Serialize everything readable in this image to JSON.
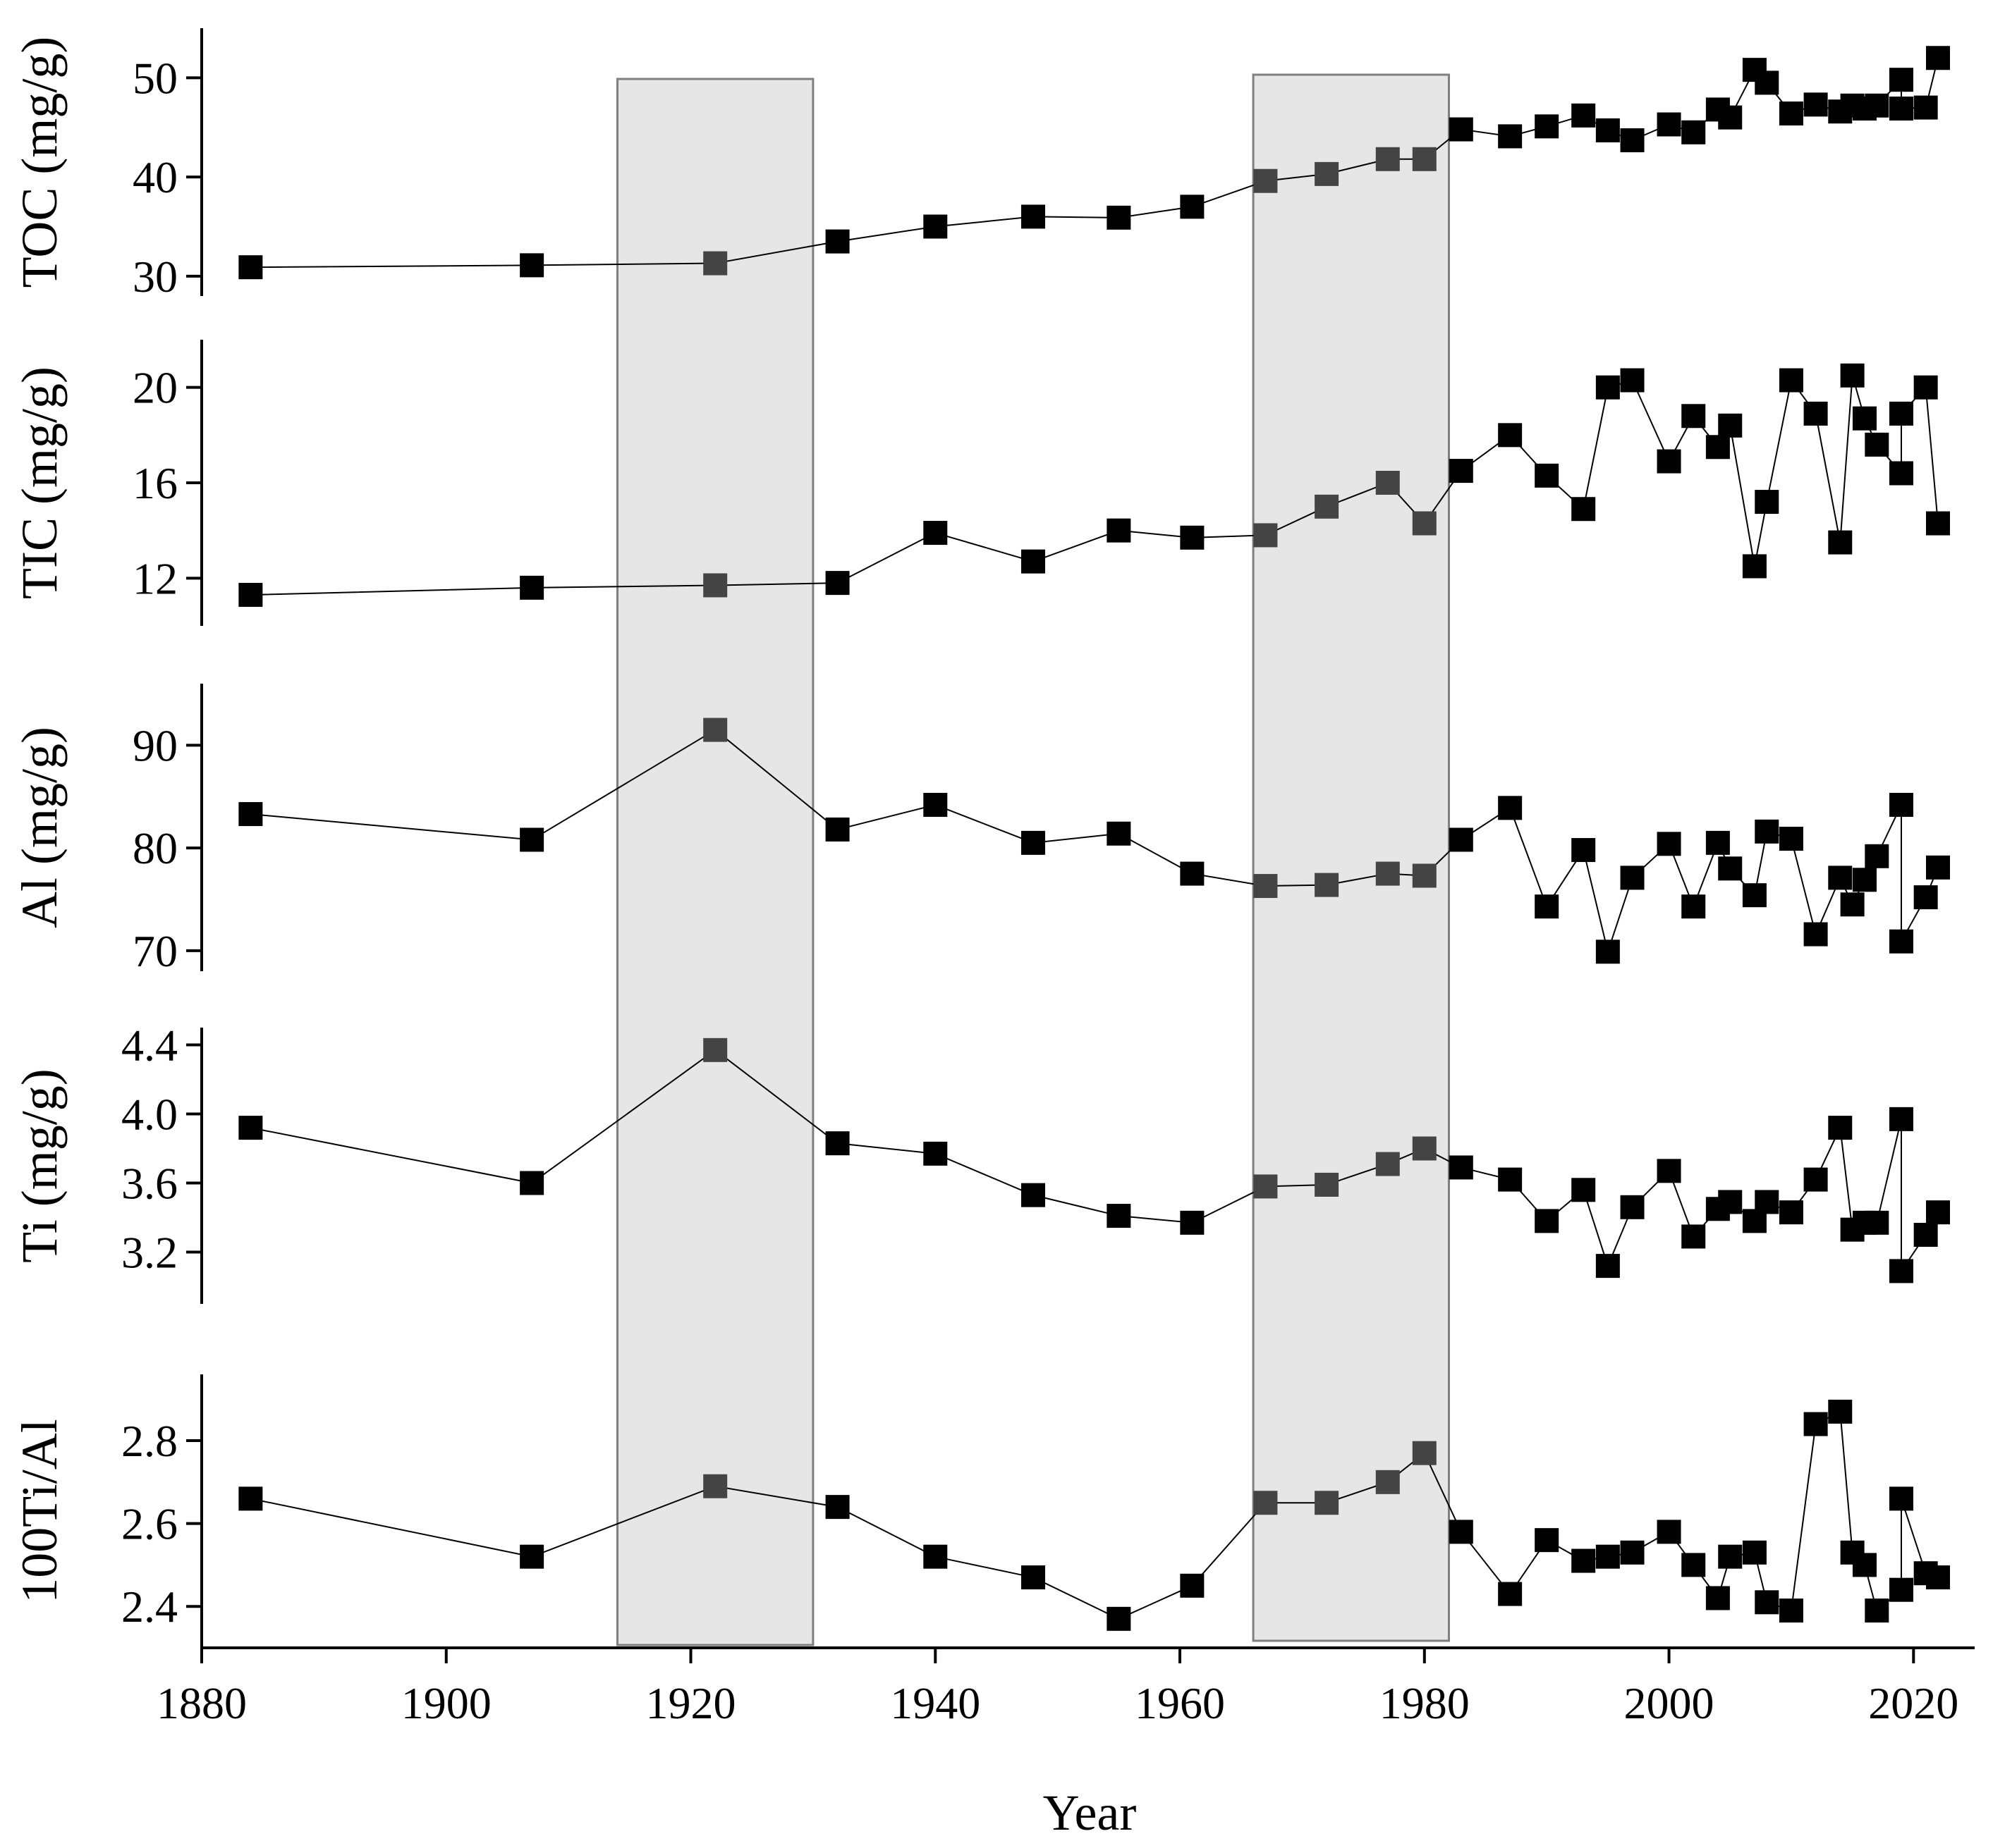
{
  "chart_data": {
    "type": "line",
    "xlabel": "Year",
    "xlim": [
      1880,
      2025
    ],
    "xticks": [
      1880,
      1900,
      1920,
      1940,
      1960,
      1980,
      2000,
      2020
    ],
    "shaded_ranges": [
      [
        1914,
        1930
      ],
      [
        1966,
        1982
      ]
    ],
    "marker": "square",
    "marker_color": "#000000",
    "shaded_marker_color": "#444444",
    "shade_color": "#e6e6e6",
    "panels": [
      {
        "ylabel": "TOC (mg/g)",
        "ylim": [
          28,
          55
        ],
        "yticks": [
          30,
          40,
          50
        ],
        "points": [
          [
            1884,
            30.9
          ],
          [
            1907,
            31.1
          ],
          [
            1922,
            31.3
          ],
          [
            1932,
            33.5
          ],
          [
            1940,
            35.0
          ],
          [
            1948,
            36.0
          ],
          [
            1955,
            35.9
          ],
          [
            1961,
            37.0
          ],
          [
            1967,
            39.6
          ],
          [
            1972,
            40.3
          ],
          [
            1977,
            41.8
          ],
          [
            1980,
            41.8
          ],
          [
            1983,
            44.8
          ],
          [
            1987,
            44.1
          ],
          [
            1990,
            45.1
          ],
          [
            1993,
            46.2
          ],
          [
            1995,
            44.7
          ],
          [
            1997,
            43.7
          ],
          [
            2000,
            45.3
          ],
          [
            2002,
            44.5
          ],
          [
            2004,
            46.8
          ],
          [
            2005,
            46.0
          ],
          [
            2007,
            50.8
          ],
          [
            2008,
            49.5
          ],
          [
            2010,
            46.4
          ],
          [
            2012,
            47.3
          ],
          [
            2014,
            46.6
          ],
          [
            2015,
            47.2
          ],
          [
            2016,
            46.9
          ],
          [
            2017,
            47.2
          ],
          [
            2019,
            49.8
          ],
          [
            2019,
            46.9
          ],
          [
            2021,
            47.0
          ],
          [
            2022,
            52.0
          ]
        ]
      },
      {
        "ylabel": "TIC (mg/g)",
        "ylim": [
          10,
          22
        ],
        "yticks": [
          12,
          16,
          20
        ],
        "points": [
          [
            1884,
            11.3
          ],
          [
            1907,
            11.6
          ],
          [
            1922,
            11.7
          ],
          [
            1932,
            11.8
          ],
          [
            1940,
            13.9
          ],
          [
            1948,
            12.7
          ],
          [
            1955,
            14.0
          ],
          [
            1961,
            13.7
          ],
          [
            1967,
            13.8
          ],
          [
            1972,
            15.0
          ],
          [
            1977,
            16.0
          ],
          [
            1980,
            14.3
          ],
          [
            1983,
            16.5
          ],
          [
            1987,
            18.0
          ],
          [
            1990,
            16.3
          ],
          [
            1993,
            14.9
          ],
          [
            1995,
            20.0
          ],
          [
            1997,
            20.3
          ],
          [
            2000,
            16.9
          ],
          [
            2002,
            18.8
          ],
          [
            2004,
            17.5
          ],
          [
            2005,
            18.4
          ],
          [
            2007,
            12.5
          ],
          [
            2008,
            15.2
          ],
          [
            2010,
            20.3
          ],
          [
            2012,
            18.9
          ],
          [
            2014,
            13.5
          ],
          [
            2015,
            20.5
          ],
          [
            2016,
            18.7
          ],
          [
            2017,
            17.6
          ],
          [
            2019,
            16.4
          ],
          [
            2019,
            18.9
          ],
          [
            2021,
            20.0
          ],
          [
            2022,
            14.3
          ]
        ]
      },
      {
        "ylabel": "Al (mg/g)",
        "ylim": [
          68,
          96
        ],
        "yticks": [
          70,
          80,
          90
        ],
        "points": [
          [
            1884,
            83.3
          ],
          [
            1907,
            80.8
          ],
          [
            1922,
            91.5
          ],
          [
            1932,
            81.8
          ],
          [
            1940,
            84.2
          ],
          [
            1948,
            80.5
          ],
          [
            1955,
            81.4
          ],
          [
            1961,
            77.5
          ],
          [
            1967,
            76.3
          ],
          [
            1972,
            76.4
          ],
          [
            1977,
            77.5
          ],
          [
            1980,
            77.3
          ],
          [
            1983,
            80.8
          ],
          [
            1987,
            83.9
          ],
          [
            1990,
            74.3
          ],
          [
            1993,
            79.8
          ],
          [
            1995,
            69.9
          ],
          [
            1997,
            77.1
          ],
          [
            2000,
            80.4
          ],
          [
            2002,
            74.3
          ],
          [
            2004,
            80.5
          ],
          [
            2005,
            78.0
          ],
          [
            2007,
            75.4
          ],
          [
            2008,
            81.6
          ],
          [
            2010,
            80.9
          ],
          [
            2012,
            71.6
          ],
          [
            2014,
            77.1
          ],
          [
            2015,
            74.5
          ],
          [
            2016,
            76.9
          ],
          [
            2017,
            79.2
          ],
          [
            2019,
            84.2
          ],
          [
            2019,
            70.9
          ],
          [
            2021,
            75.2
          ],
          [
            2022,
            78.1
          ]
        ]
      },
      {
        "ylabel": "Ti (mg/g)",
        "ylim": [
          2.9,
          4.5
        ],
        "yticks": [
          3.2,
          3.6,
          4.0,
          4.4
        ],
        "points": [
          [
            1884,
            3.92
          ],
          [
            1907,
            3.6
          ],
          [
            1922,
            4.37
          ],
          [
            1932,
            3.83
          ],
          [
            1940,
            3.77
          ],
          [
            1948,
            3.53
          ],
          [
            1955,
            3.41
          ],
          [
            1961,
            3.37
          ],
          [
            1967,
            3.58
          ],
          [
            1972,
            3.59
          ],
          [
            1977,
            3.71
          ],
          [
            1980,
            3.8
          ],
          [
            1983,
            3.69
          ],
          [
            1987,
            3.62
          ],
          [
            1990,
            3.38
          ],
          [
            1993,
            3.56
          ],
          [
            1995,
            3.12
          ],
          [
            1997,
            3.46
          ],
          [
            2000,
            3.67
          ],
          [
            2002,
            3.29
          ],
          [
            2004,
            3.45
          ],
          [
            2005,
            3.49
          ],
          [
            2007,
            3.38
          ],
          [
            2008,
            3.49
          ],
          [
            2010,
            3.43
          ],
          [
            2012,
            3.62
          ],
          [
            2014,
            3.92
          ],
          [
            2015,
            3.33
          ],
          [
            2016,
            3.37
          ],
          [
            2017,
            3.37
          ],
          [
            2019,
            3.97
          ],
          [
            2019,
            3.09
          ],
          [
            2021,
            3.3
          ],
          [
            2022,
            3.43
          ]
        ]
      },
      {
        "ylabel": "100Ti/Al",
        "ylim": [
          2.3,
          2.96
        ],
        "yticks": [
          2.4,
          2.6,
          2.8
        ],
        "points": [
          [
            1884,
            2.66
          ],
          [
            1907,
            2.52
          ],
          [
            1922,
            2.69
          ],
          [
            1932,
            2.64
          ],
          [
            1940,
            2.52
          ],
          [
            1948,
            2.47
          ],
          [
            1955,
            2.37
          ],
          [
            1961,
            2.45
          ],
          [
            1967,
            2.65
          ],
          [
            1972,
            2.65
          ],
          [
            1977,
            2.7
          ],
          [
            1980,
            2.77
          ],
          [
            1983,
            2.58
          ],
          [
            1987,
            2.43
          ],
          [
            1990,
            2.56
          ],
          [
            1993,
            2.51
          ],
          [
            1995,
            2.52
          ],
          [
            1997,
            2.53
          ],
          [
            2000,
            2.58
          ],
          [
            2002,
            2.5
          ],
          [
            2004,
            2.42
          ],
          [
            2005,
            2.52
          ],
          [
            2007,
            2.53
          ],
          [
            2008,
            2.41
          ],
          [
            2010,
            2.39
          ],
          [
            2012,
            2.84
          ],
          [
            2014,
            2.87
          ],
          [
            2015,
            2.53
          ],
          [
            2016,
            2.5
          ],
          [
            2017,
            2.39
          ],
          [
            2019,
            2.44
          ],
          [
            2019,
            2.66
          ],
          [
            2021,
            2.48
          ],
          [
            2022,
            2.47
          ]
        ]
      }
    ]
  }
}
